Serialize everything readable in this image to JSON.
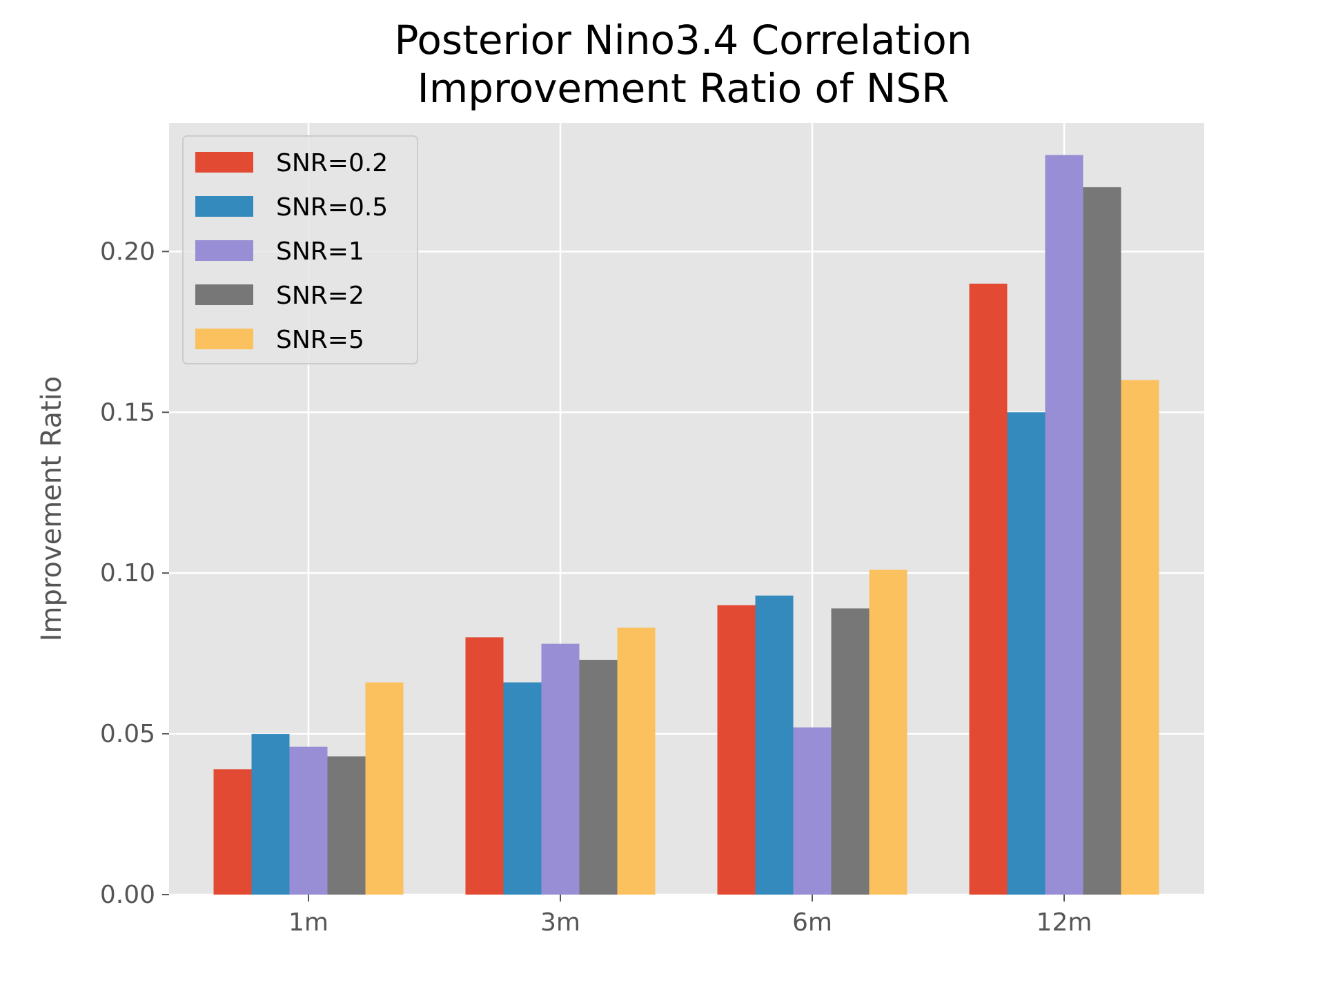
{
  "chart_data": {
    "type": "bar",
    "title_lines": [
      "Posterior Nino3.4 Correlation",
      "Improvement Ratio of NSR"
    ],
    "xlabel": "",
    "ylabel": "Improvement Ratio",
    "categories": [
      "1m",
      "3m",
      "6m",
      "12m"
    ],
    "ylim": [
      0,
      0.24
    ],
    "yticks": [
      0.0,
      0.05,
      0.1,
      0.15,
      0.2
    ],
    "ytick_labels": [
      "0.00",
      "0.05",
      "0.10",
      "0.15",
      "0.20"
    ],
    "grid": true,
    "legend_position": "top-left",
    "series": [
      {
        "name": "SNR=0.2",
        "color": "#E24A33",
        "values": [
          0.039,
          0.08,
          0.09,
          0.19
        ]
      },
      {
        "name": "SNR=0.5",
        "color": "#348ABD",
        "values": [
          0.05,
          0.066,
          0.093,
          0.15
        ]
      },
      {
        "name": "SNR=1",
        "color": "#988ED5",
        "values": [
          0.046,
          0.078,
          0.052,
          0.23
        ]
      },
      {
        "name": "SNR=2",
        "color": "#777777",
        "values": [
          0.043,
          0.073,
          0.089,
          0.22
        ]
      },
      {
        "name": "SNR=5",
        "color": "#FBC15E",
        "values": [
          0.066,
          0.083,
          0.101,
          0.16
        ]
      }
    ]
  }
}
